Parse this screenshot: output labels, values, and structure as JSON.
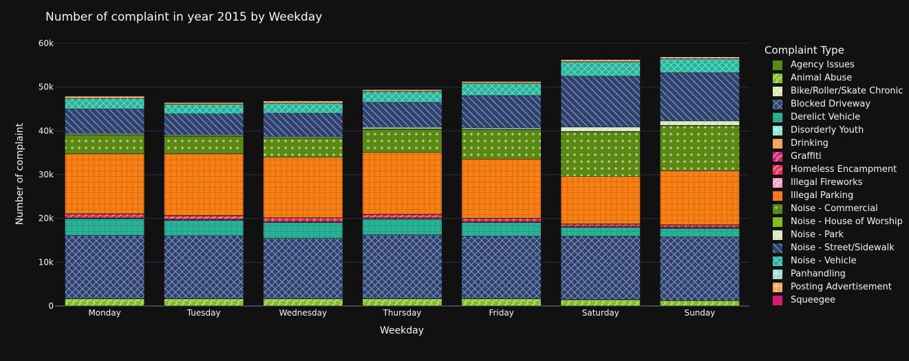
{
  "chart_data": {
    "type": "bar",
    "stacked": true,
    "title": "Number of complaint in year 2015 by Weekday",
    "xlabel": "Weekday",
    "ylabel": "Number of complaint",
    "ylim": [
      0,
      60000
    ],
    "yticks": [
      0,
      10000,
      20000,
      30000,
      40000,
      50000,
      60000
    ],
    "ytick_labels": [
      "0",
      "10k",
      "20k",
      "30k",
      "40k",
      "50k",
      "60k"
    ],
    "categories": [
      "Monday",
      "Tuesday",
      "Wednesday",
      "Thursday",
      "Friday",
      "Saturday",
      "Sunday"
    ],
    "legend_title": "Complaint Type",
    "legend_position": "right",
    "grid": true,
    "series": [
      {
        "name": "Agency Issues",
        "color": "#5a8a12",
        "pattern": "solid",
        "values": [
          10,
          10,
          10,
          10,
          10,
          10,
          10
        ]
      },
      {
        "name": "Animal Abuse",
        "color": "#7fbf1e",
        "pattern": "diag",
        "values": [
          1600,
          1600,
          1600,
          1600,
          1600,
          1400,
          1200
        ]
      },
      {
        "name": "Bike/Roller/Skate Chronic",
        "color": "#d4e8b4",
        "pattern": "diag",
        "values": [
          40,
          40,
          40,
          40,
          40,
          40,
          40
        ]
      },
      {
        "name": "Blocked Driveway",
        "color": "#2e4272",
        "pattern": "cross",
        "values": [
          14500,
          14400,
          13800,
          14600,
          14300,
          14500,
          14500
        ]
      },
      {
        "name": "Derelict Vehicle",
        "color": "#23b59b",
        "pattern": "grid",
        "values": [
          3800,
          3500,
          3600,
          3600,
          3100,
          2000,
          2000
        ]
      },
      {
        "name": "Disorderly Youth",
        "color": "#8ee8d8",
        "pattern": "plus",
        "values": [
          20,
          20,
          20,
          20,
          20,
          20,
          20
        ]
      },
      {
        "name": "Drinking",
        "color": "#f2a65a",
        "pattern": "solid",
        "values": [
          100,
          100,
          100,
          100,
          100,
          100,
          100
        ]
      },
      {
        "name": "Graffiti",
        "color": "#d41c6e",
        "pattern": "diag",
        "values": [
          200,
          200,
          200,
          200,
          200,
          200,
          200
        ]
      },
      {
        "name": "Homeless Encampment",
        "color": "#f0285a",
        "pattern": "diag",
        "values": [
          700,
          700,
          700,
          700,
          600,
          400,
          400
        ]
      },
      {
        "name": "Illegal Fireworks",
        "color": "#f5a0c0",
        "pattern": "diag",
        "values": [
          100,
          100,
          100,
          100,
          100,
          100,
          100
        ]
      },
      {
        "name": "Illegal Parking",
        "color": "#f97f13",
        "pattern": "grid",
        "values": [
          13700,
          14100,
          13800,
          14100,
          13500,
          10800,
          12300
        ]
      },
      {
        "name": "Noise - Commercial",
        "color": "#5a8a12",
        "pattern": "dots",
        "values": [
          4300,
          4000,
          4400,
          5300,
          6700,
          10200,
          10300
        ]
      },
      {
        "name": "Noise - House of Worship",
        "color": "#7fbf1e",
        "pattern": "solid",
        "values": [
          100,
          100,
          100,
          100,
          100,
          100,
          100
        ]
      },
      {
        "name": "Noise - Park",
        "color": "#d4e8b4",
        "pattern": "diag",
        "values": [
          230,
          200,
          230,
          330,
          300,
          1000,
          1000
        ]
      },
      {
        "name": "Noise - Street/Sidewalk",
        "color": "#2e4272",
        "pattern": "back",
        "values": [
          5600,
          4800,
          5300,
          5700,
          7400,
          11600,
          11000
        ]
      },
      {
        "name": "Noise - Vehicle",
        "color": "#23b59b",
        "pattern": "cross",
        "values": [
          2400,
          2200,
          2300,
          2500,
          2800,
          3300,
          3200
        ]
      },
      {
        "name": "Panhandling",
        "color": "#a8d8d0",
        "pattern": "plus",
        "values": [
          30,
          30,
          30,
          30,
          30,
          30,
          30
        ]
      },
      {
        "name": "Posting Advertisement",
        "color": "#f2a65a",
        "pattern": "plus",
        "values": [
          500,
          400,
          500,
          400,
          400,
          500,
          400
        ]
      },
      {
        "name": "Squeegee",
        "color": "#d41c6e",
        "pattern": "solid",
        "values": [
          5,
          5,
          5,
          5,
          5,
          5,
          5
        ]
      }
    ]
  }
}
